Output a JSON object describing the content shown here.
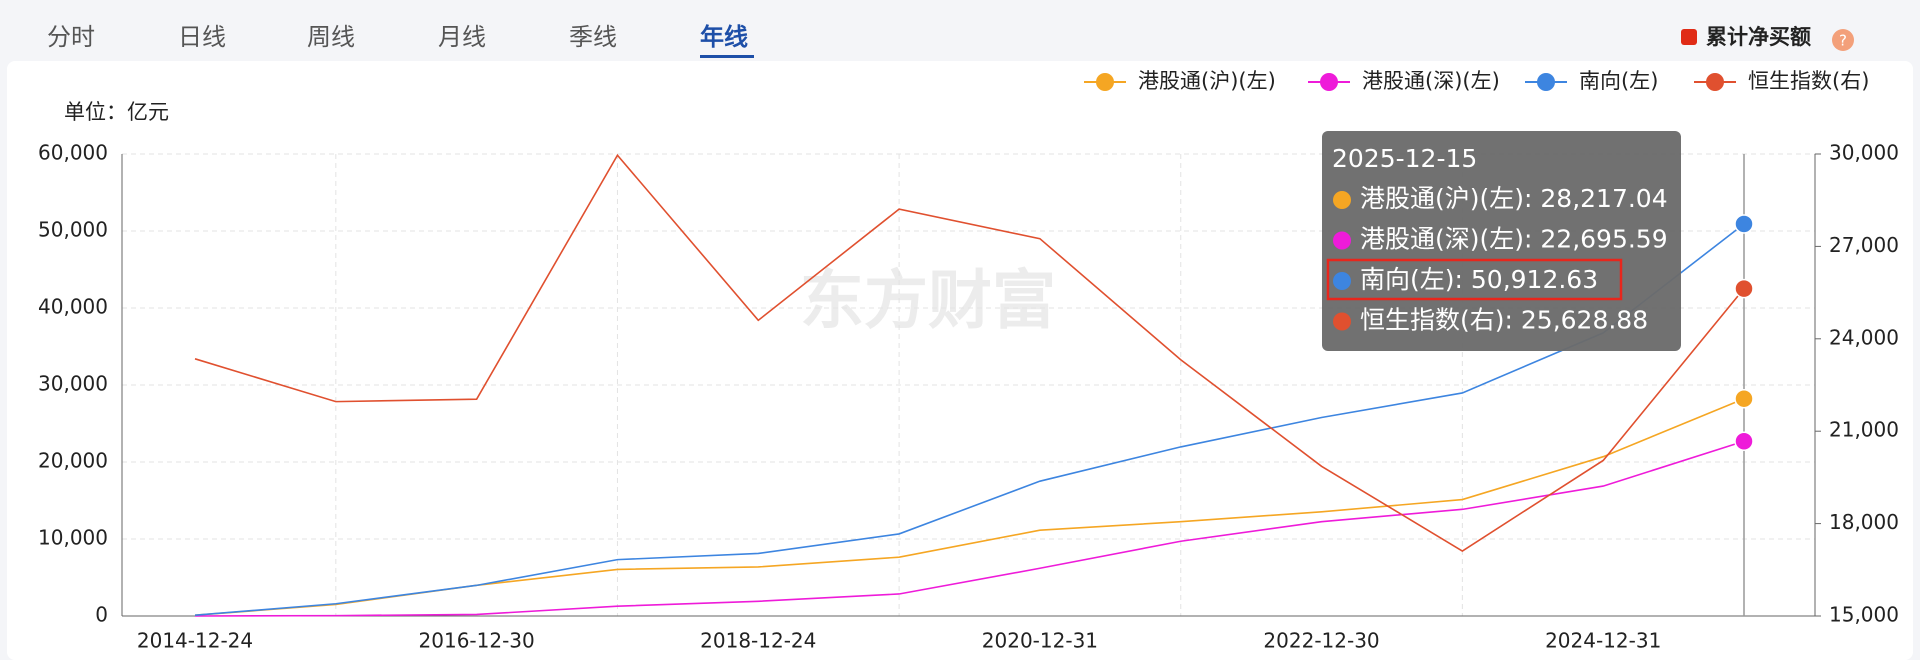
{
  "tabs": {
    "items": [
      "分时",
      "日线",
      "周线",
      "月线",
      "季线",
      "年线"
    ],
    "active": 5
  },
  "button": {
    "label": "累计净买额",
    "help": "?"
  },
  "watermark": "东方财富",
  "chart_data": {
    "type": "line",
    "unit_label": "单位：亿元",
    "categories": [
      "2014-12-24",
      null,
      "2016-12-30",
      null,
      "2018-12-24",
      null,
      "2020-12-31",
      null,
      "2022-12-30",
      null,
      "2024-12-31",
      null
    ],
    "series": [
      {
        "name": "港股通(沪)(左)",
        "color": "#f5a623",
        "values": [
          100,
          1500,
          3980,
          6050,
          6370,
          7640,
          11140,
          12250,
          13530,
          15120,
          20690,
          28217.04
        ]
      },
      {
        "name": "港股通(深)(左)",
        "color": "#ee1bd9",
        "values": [
          0,
          50,
          200,
          1270,
          1910,
          2860,
          6200,
          9710,
          12250,
          13850,
          16870,
          22695.59
        ]
      },
      {
        "name": "南向(左)",
        "color": "#3d85e0",
        "values": [
          100,
          1590,
          3980,
          7320,
          8120,
          10660,
          17510,
          21960,
          25780,
          28970,
          36770,
          50912.63
        ]
      },
      {
        "name": "恒生指数(右)",
        "color": "#e0502f",
        "axis": "y2",
        "values": [
          23350,
          21960,
          22040,
          29960,
          24600,
          28210,
          27250,
          23320,
          19860,
          17110,
          20050,
          25628.88
        ]
      }
    ],
    "ylim": [
      0,
      60000
    ],
    "yticks": [
      0,
      {
        "value": 10000,
        "label": "10,000"
      },
      {
        "value": 20000,
        "label": "20,000"
      },
      {
        "value": 30000,
        "label": "30,000"
      },
      {
        "value": 40000,
        "label": "40,000"
      },
      {
        "value": 50000,
        "label": "50,000"
      },
      {
        "value": 60000,
        "label": "60,000"
      }
    ],
    "y2lim": [
      15000,
      30000
    ],
    "y2ticks": [
      {
        "value": 15000,
        "label": "15,000"
      },
      {
        "value": 18000,
        "label": "18,000"
      },
      {
        "value": 21000,
        "label": "21,000"
      },
      {
        "value": 24000,
        "label": "24,000"
      },
      {
        "value": 27000,
        "label": "27,000"
      },
      {
        "value": 30000,
        "label": "30,000"
      }
    ],
    "grid": true,
    "legend": "top-right",
    "tooltip": {
      "title": "2025-12-15",
      "rows": [
        "港股通(沪)(左): 28,217.04",
        "港股通(深)(左): 22,695.59",
        "南向(左): 50,912.63",
        "恒生指数(右): 25,628.88"
      ]
    }
  }
}
